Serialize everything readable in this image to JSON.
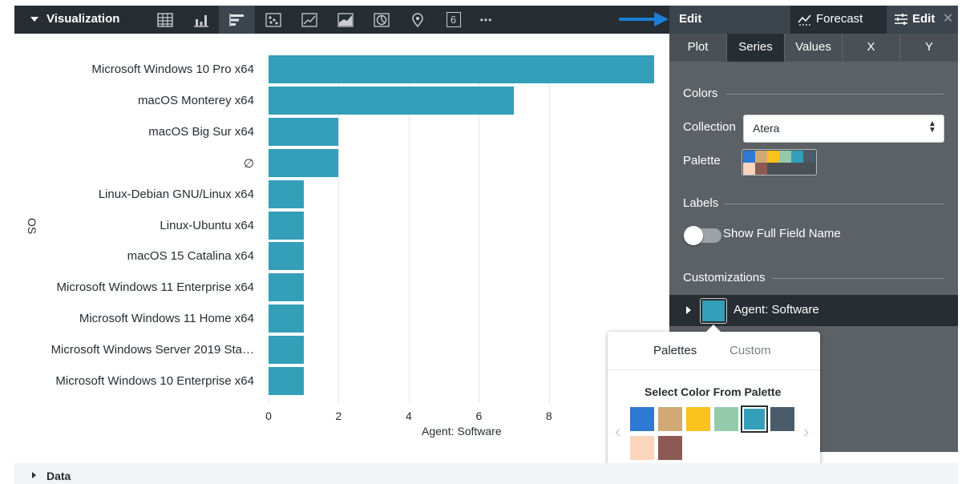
{
  "toolbar": {
    "title": "Visualization",
    "types": [
      {
        "icon": "table-icon",
        "label": ""
      },
      {
        "icon": "column-chart-icon",
        "label": ""
      },
      {
        "icon": "bar-chart-icon",
        "label": ""
      },
      {
        "icon": "scatter-chart-icon",
        "label": ""
      },
      {
        "icon": "line-chart-icon",
        "label": ""
      },
      {
        "icon": "area-chart-icon",
        "label": ""
      },
      {
        "icon": "pie-chart-icon",
        "label": ""
      },
      {
        "icon": "map-pin-icon",
        "label": ""
      },
      {
        "icon": "single-value-icon",
        "label": "6"
      },
      {
        "icon": "more-options-icon",
        "label": "•••"
      }
    ]
  },
  "edit_header": {
    "edit_label": "Edit",
    "forecast_label": "Forecast",
    "edit_tab_label": "Edit",
    "close_label": "✕"
  },
  "panel": {
    "tabs": [
      "Plot",
      "Series",
      "Values",
      "X",
      "Y"
    ],
    "active_tab": "Series",
    "colors_title": "Colors",
    "collection_label": "Collection",
    "collection_value": "Atera",
    "palette_label": "Palette",
    "labels_title": "Labels",
    "show_full_field_name": "Show Full Field Name",
    "customizations_title": "Customizations",
    "series_name": "Agent: Software",
    "series_color": "#339fb8"
  },
  "palette_colors": [
    "#2f78d4",
    "#d2a974",
    "#fbc21d",
    "#93cbaa",
    "#339fb8",
    "#4a5b6a",
    "#fcd5bd",
    "#8c5a52"
  ],
  "popover": {
    "tab_palettes": "Palettes",
    "tab_custom": "Custom",
    "heading": "Select Color From Palette",
    "prev": "‹",
    "next": "›"
  },
  "chart_data": {
    "type": "bar",
    "orientation": "horizontal",
    "categories": [
      "Microsoft Windows 10 Pro x64",
      "macOS Monterey x64",
      "macOS Big Sur x64",
      "∅",
      "Linux-Debian GNU/Linux x64",
      "Linux-Ubuntu x64",
      "macOS 15 Catalina x64",
      "Microsoft Windows 11 Enterprise x64",
      "Microsoft Windows 11 Home x64",
      "Microsoft Windows Server 2019 Sta…",
      "Microsoft Windows 10 Enterprise x64"
    ],
    "series": [
      {
        "name": "Agent: Software",
        "values": [
          11,
          7,
          2,
          2,
          1,
          1,
          1,
          1,
          1,
          1,
          1
        ]
      }
    ],
    "xlabel": "Agent: Software",
    "ylabel": "OS",
    "xticks": [
      0,
      2,
      4,
      6,
      8
    ],
    "xlim": [
      0,
      11
    ]
  },
  "data_section": {
    "label": "Data"
  }
}
